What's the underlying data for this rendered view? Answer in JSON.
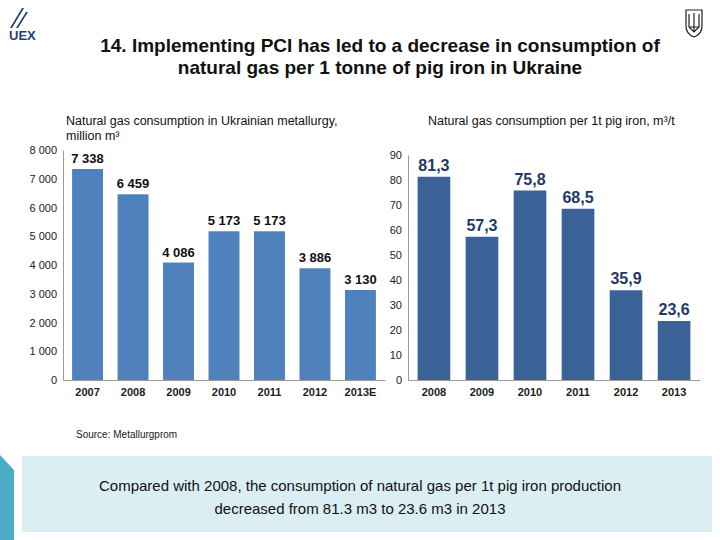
{
  "slide": {
    "title": [
      "14. Implementing PCI has led to a decrease in consumption of",
      "natural gas per 1 tonne of pig iron in Ukraine"
    ],
    "logo": "UEX",
    "source": "Source: Metallurgprom",
    "note": [
      "Compared with 2008, the consumption of natural gas per 1t pig iron  production",
      "decreased from 81.3 m3 to 23.6 m3 in 2013"
    ]
  },
  "chart_data": [
    {
      "type": "bar",
      "title": "Natural gas consumption in Ukrainian metallurgy, million m³",
      "categories": [
        "2007",
        "2008",
        "2009",
        "2010",
        "2011",
        "2012",
        "2013E"
      ],
      "values": [
        7338,
        6459,
        4086,
        5173,
        5173,
        3886,
        3130
      ],
      "value_labels": [
        "7 338",
        "6 459",
        "4 086",
        "5 173",
        "5 173",
        "3 886",
        "3 130"
      ],
      "data_labels": true,
      "color": "#4f81bd",
      "ylim": [
        0,
        8000
      ],
      "yticks": [
        0,
        {
          "value": 1000,
          "label": "1 000"
        },
        {
          "value": 2000,
          "label": "2 000"
        },
        {
          "value": 3000,
          "label": "3 000"
        },
        {
          "value": 4000,
          "label": "4 000"
        },
        {
          "value": 5000,
          "label": "5 000"
        },
        {
          "value": 6000,
          "label": "6 000"
        },
        {
          "value": 7000,
          "label": "7 000"
        },
        {
          "value": 8000,
          "label": "8 000"
        }
      ],
      "grid": false
    },
    {
      "type": "bar",
      "title": "Natural gas consumption per 1t pig iron, m³/t",
      "categories": [
        "2008",
        "2009",
        "2010",
        "2011",
        "2012",
        "2013"
      ],
      "values": [
        81.3,
        57.3,
        75.8,
        68.5,
        35.9,
        23.6
      ],
      "value_labels": [
        "81,3",
        "57,3",
        "75,8",
        "68,5",
        "35,9",
        "23,6"
      ],
      "data_labels": true,
      "color": "#3a6296",
      "ylim": [
        0,
        90
      ],
      "yticks": [
        0,
        10,
        20,
        30,
        40,
        50,
        60,
        70,
        80,
        90
      ],
      "grid": false
    }
  ]
}
